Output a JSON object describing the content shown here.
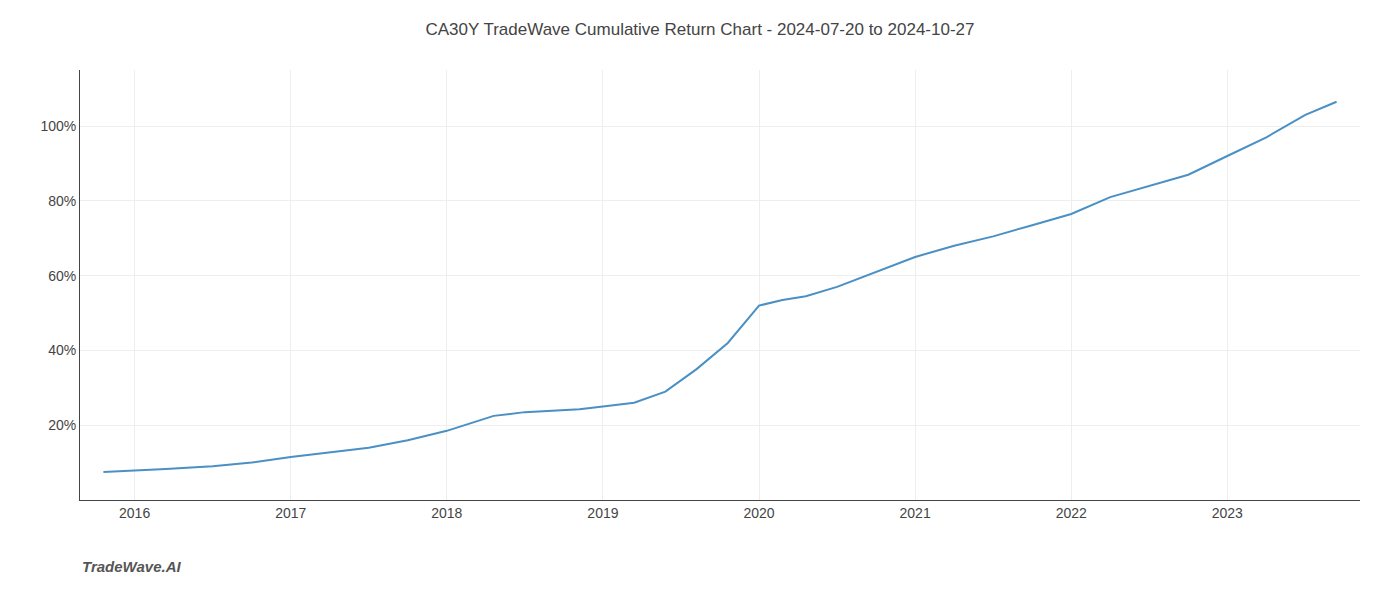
{
  "chart_data": {
    "type": "line",
    "title": "CA30Y TradeWave Cumulative Return Chart - 2024-07-20 to 2024-10-27",
    "annotations": [
      "TradeWave.AI"
    ],
    "x": [
      2015.8,
      2016.0,
      2016.2,
      2016.5,
      2016.75,
      2017.0,
      2017.2,
      2017.5,
      2017.75,
      2018.0,
      2018.15,
      2018.3,
      2018.5,
      2018.7,
      2018.85,
      2019.0,
      2019.1,
      2019.2,
      2019.4,
      2019.6,
      2019.8,
      2020.0,
      2020.15,
      2020.3,
      2020.5,
      2020.75,
      2021.0,
      2021.25,
      2021.5,
      2021.75,
      2022.0,
      2022.25,
      2022.5,
      2022.75,
      2023.0,
      2023.25,
      2023.5,
      2023.7
    ],
    "values": [
      7.5,
      8.0,
      8.3,
      9.0,
      10.0,
      11.5,
      12.5,
      14.0,
      16.0,
      18.5,
      20.5,
      22.5,
      23.5,
      24.0,
      24.3,
      25.0,
      25.5,
      26.0,
      29.0,
      35.0,
      42.0,
      52.0,
      53.5,
      54.5,
      57.0,
      61.0,
      65.0,
      68.0,
      70.5,
      73.5,
      76.5,
      81.0,
      84.0,
      87.0,
      92.0,
      97.0,
      103.0,
      106.5
    ],
    "color": "#4a90c4",
    "xlim": [
      2015.65,
      2023.85
    ],
    "xticks": [
      2016,
      2017,
      2018,
      2019,
      2020,
      2021,
      2022,
      2023
    ],
    "ylim": [
      0,
      115
    ],
    "yticks": [
      {
        "value": 20,
        "label": "20%"
      },
      {
        "value": 40,
        "label": "40%"
      },
      {
        "value": 60,
        "label": "60%"
      },
      {
        "value": 80,
        "label": "80%"
      },
      {
        "value": 100,
        "label": "100%"
      }
    ],
    "grid": true
  }
}
